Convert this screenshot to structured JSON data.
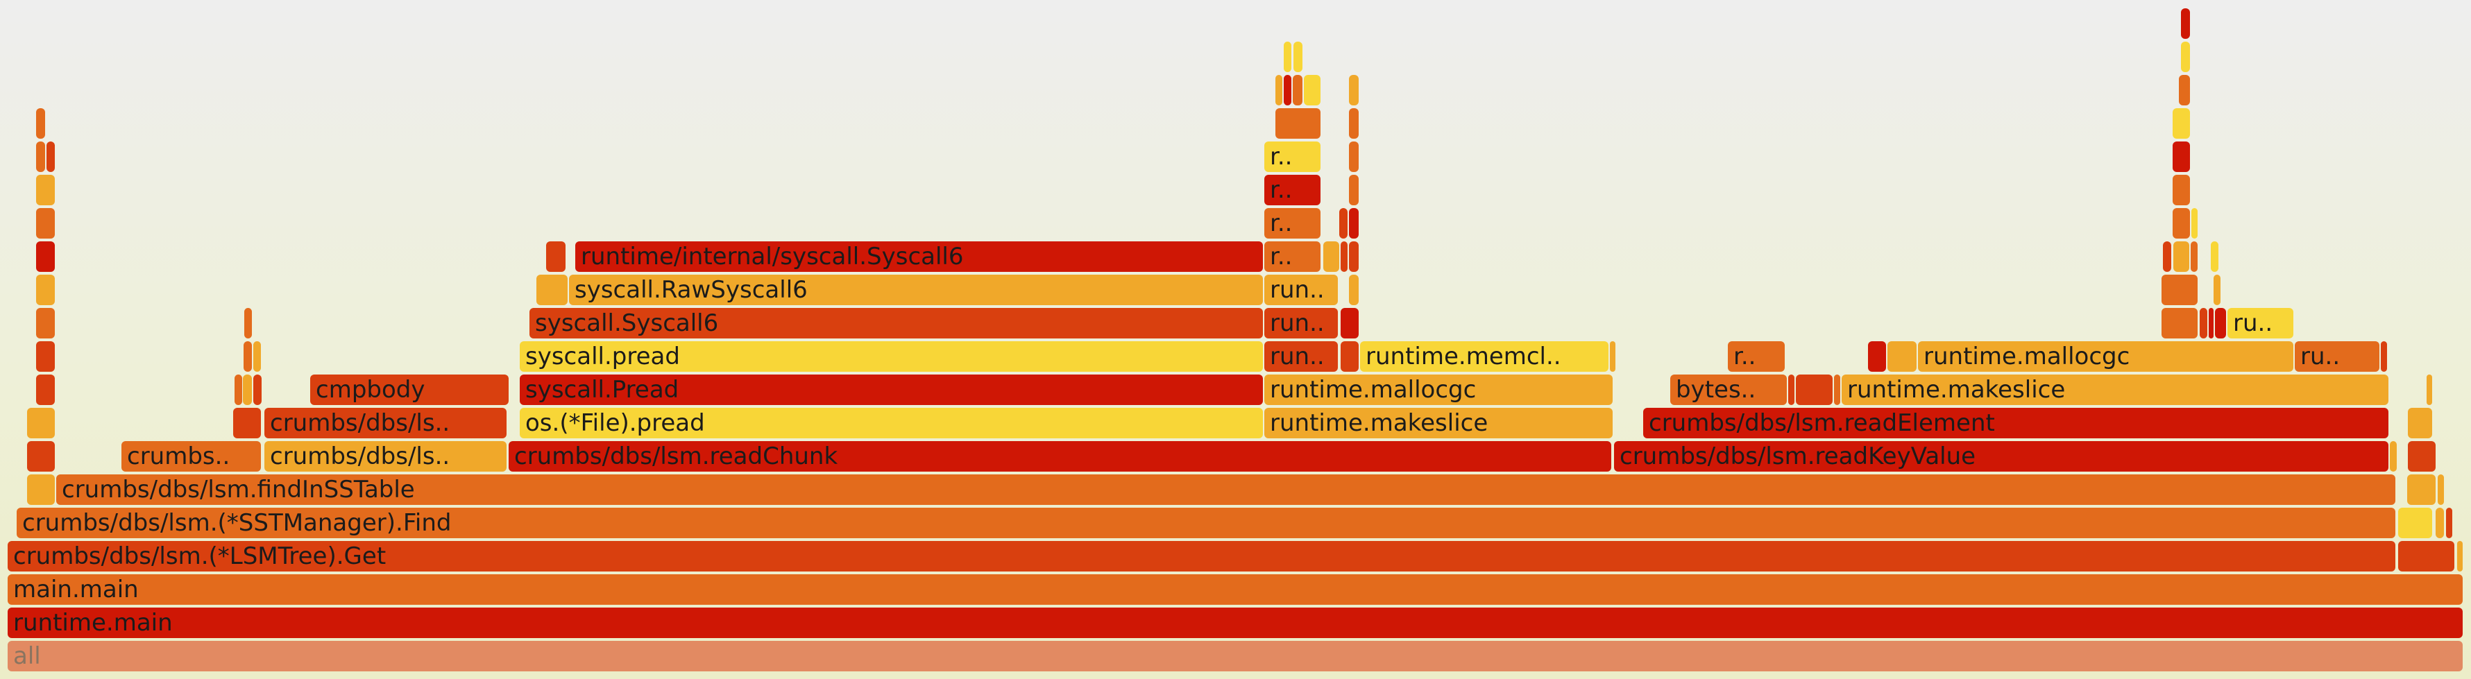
{
  "colors": {
    "red": "#cf1705",
    "orange_red": "#d9400f",
    "orange": "#e36b1c",
    "amber": "#f0a82a",
    "yellow": "#f8d637",
    "root": "#e28a62"
  },
  "frames": [
    {
      "d": 0,
      "s": 11,
      "e": 3549,
      "c": "root",
      "t": "all"
    },
    {
      "d": 1,
      "s": 11,
      "e": 3549,
      "c": "red",
      "t": "runtime.main"
    },
    {
      "d": 2,
      "s": 11,
      "e": 3549,
      "c": "orange",
      "t": "main.main"
    },
    {
      "d": 3,
      "s": 11,
      "e": 3452,
      "c": "orange_red",
      "t": "crumbs/dbs/lsm.(*LSMTree).Get"
    },
    {
      "d": 3,
      "s": 3456,
      "e": 3537,
      "c": "orange_red",
      "t": ""
    },
    {
      "d": 3,
      "s": 3541,
      "e": 3549,
      "c": "amber",
      "t": ""
    },
    {
      "d": 4,
      "s": 24,
      "e": 3452,
      "c": "orange",
      "t": "crumbs/dbs/lsm.(*SSTManager).Find"
    },
    {
      "d": 4,
      "s": 3456,
      "e": 3505,
      "c": "yellow",
      "t": ""
    },
    {
      "d": 4,
      "s": 3510,
      "e": 3522,
      "c": "amber",
      "t": ""
    },
    {
      "d": 4,
      "s": 3525,
      "e": 3534,
      "c": "orange_red",
      "t": ""
    },
    {
      "d": 5,
      "s": 39,
      "e": 79,
      "c": "amber",
      "t": ""
    },
    {
      "d": 5,
      "s": 81,
      "e": 3452,
      "c": "orange",
      "t": "crumbs/dbs/lsm.findInSSTable"
    },
    {
      "d": 5,
      "s": 3469,
      "e": 3510,
      "c": "amber",
      "t": ""
    },
    {
      "d": 5,
      "s": 3513,
      "e": 3522,
      "c": "amber",
      "t": ""
    },
    {
      "d": 6,
      "s": 39,
      "e": 79,
      "c": "orange_red",
      "t": ""
    },
    {
      "d": 6,
      "s": 175,
      "e": 376,
      "c": "orange",
      "t": "crumbs.."
    },
    {
      "d": 6,
      "s": 381,
      "e": 730,
      "c": "amber",
      "t": "crumbs/dbs/ls.."
    },
    {
      "d": 6,
      "s": 733,
      "e": 2322,
      "c": "red",
      "t": "crumbs/dbs/lsm.readChunk"
    },
    {
      "d": 6,
      "s": 2326,
      "e": 3442,
      "c": "red",
      "t": "crumbs/dbs/lsm.readKeyValue"
    },
    {
      "d": 6,
      "s": 3444,
      "e": 3454,
      "c": "amber",
      "t": ""
    },
    {
      "d": 6,
      "s": 3470,
      "e": 3510,
      "c": "orange_red",
      "t": ""
    },
    {
      "d": 7,
      "s": 39,
      "e": 79,
      "c": "amber",
      "t": ""
    },
    {
      "d": 7,
      "s": 336,
      "e": 376,
      "c": "orange_red",
      "t": ""
    },
    {
      "d": 7,
      "s": 381,
      "e": 730,
      "c": "orange_red",
      "t": "crumbs/dbs/ls.."
    },
    {
      "d": 7,
      "s": 749,
      "e": 1820,
      "c": "yellow",
      "t": "os.(*File).pread"
    },
    {
      "d": 7,
      "s": 1822,
      "e": 2324,
      "c": "amber",
      "t": "runtime.makeslice"
    },
    {
      "d": 7,
      "s": 2368,
      "e": 3442,
      "c": "red",
      "t": "crumbs/dbs/lsm.readElement"
    },
    {
      "d": 7,
      "s": 3470,
      "e": 3505,
      "c": "amber",
      "t": ""
    },
    {
      "d": 8,
      "s": 52,
      "e": 79,
      "c": "orange_red",
      "t": ""
    },
    {
      "d": 8,
      "s": 338,
      "e": 349,
      "c": "orange",
      "t": ""
    },
    {
      "d": 8,
      "s": 350,
      "e": 363,
      "c": "amber",
      "t": ""
    },
    {
      "d": 8,
      "s": 365,
      "e": 377,
      "c": "orange_red",
      "t": ""
    },
    {
      "d": 8,
      "s": 447,
      "e": 733,
      "c": "orange_red",
      "t": "cmpbody"
    },
    {
      "d": 8,
      "s": 749,
      "e": 1820,
      "c": "red",
      "t": "syscall.Pread"
    },
    {
      "d": 8,
      "s": 1822,
      "e": 2324,
      "c": "amber",
      "t": "runtime.mallocgc"
    },
    {
      "d": 8,
      "s": 2407,
      "e": 2575,
      "c": "orange",
      "t": "bytes.."
    },
    {
      "d": 8,
      "s": 2577,
      "e": 2586,
      "c": "orange_red",
      "t": ""
    },
    {
      "d": 8,
      "s": 2588,
      "e": 2641,
      "c": "orange_red",
      "t": ""
    },
    {
      "d": 8,
      "s": 2643,
      "e": 2652,
      "c": "orange",
      "t": ""
    },
    {
      "d": 8,
      "s": 2654,
      "e": 3442,
      "c": "amber",
      "t": "runtime.makeslice"
    },
    {
      "d": 8,
      "s": 3497,
      "e": 3505,
      "c": "amber",
      "t": ""
    },
    {
      "d": 9,
      "s": 52,
      "e": 79,
      "c": "orange_red",
      "t": ""
    },
    {
      "d": 9,
      "s": 351,
      "e": 363,
      "c": "orange",
      "t": ""
    },
    {
      "d": 9,
      "s": 365,
      "e": 376,
      "c": "amber",
      "t": ""
    },
    {
      "d": 9,
      "s": 749,
      "e": 1820,
      "c": "yellow",
      "t": "syscall.pread"
    },
    {
      "d": 9,
      "s": 1822,
      "e": 1928,
      "c": "orange_red",
      "t": "run.."
    },
    {
      "d": 9,
      "s": 1932,
      "e": 1958,
      "c": "orange_red",
      "t": ""
    },
    {
      "d": 9,
      "s": 1960,
      "e": 2318,
      "c": "yellow",
      "t": "runtime.memcl.."
    },
    {
      "d": 9,
      "s": 2320,
      "e": 2328,
      "c": "amber",
      "t": ""
    },
    {
      "d": 9,
      "s": 2490,
      "e": 2572,
      "c": "orange",
      "t": "r.."
    },
    {
      "d": 9,
      "s": 2692,
      "e": 2718,
      "c": "red",
      "t": ""
    },
    {
      "d": 9,
      "s": 2720,
      "e": 2762,
      "c": "amber",
      "t": ""
    },
    {
      "d": 9,
      "s": 2764,
      "e": 3305,
      "c": "amber",
      "t": "runtime.mallocgc"
    },
    {
      "d": 9,
      "s": 3307,
      "e": 3429,
      "c": "orange",
      "t": "ru.."
    },
    {
      "d": 9,
      "s": 3431,
      "e": 3440,
      "c": "orange_red",
      "t": ""
    },
    {
      "d": 10,
      "s": 52,
      "e": 79,
      "c": "orange",
      "t": ""
    },
    {
      "d": 10,
      "s": 352,
      "e": 363,
      "c": "orange",
      "t": ""
    },
    {
      "d": 10,
      "s": 763,
      "e": 1820,
      "c": "orange_red",
      "t": "syscall.Syscall6"
    },
    {
      "d": 10,
      "s": 1822,
      "e": 1928,
      "c": "orange_red",
      "t": "run.."
    },
    {
      "d": 10,
      "s": 1932,
      "e": 1958,
      "c": "red",
      "t": ""
    },
    {
      "d": 10,
      "s": 3115,
      "e": 3167,
      "c": "orange",
      "t": ""
    },
    {
      "d": 10,
      "s": 3170,
      "e": 3181,
      "c": "orange_red",
      "t": ""
    },
    {
      "d": 10,
      "s": 3183,
      "e": 3190,
      "c": "red",
      "t": ""
    },
    {
      "d": 10,
      "s": 3192,
      "e": 3208,
      "c": "red",
      "t": ""
    },
    {
      "d": 10,
      "s": 3210,
      "e": 3305,
      "c": "yellow",
      "t": "ru.."
    },
    {
      "d": 11,
      "s": 52,
      "e": 79,
      "c": "amber",
      "t": ""
    },
    {
      "d": 11,
      "s": 773,
      "e": 818,
      "c": "amber",
      "t": ""
    },
    {
      "d": 11,
      "s": 820,
      "e": 1820,
      "c": "amber",
      "t": "syscall.RawSyscall6"
    },
    {
      "d": 11,
      "s": 1822,
      "e": 1928,
      "c": "amber",
      "t": "run.."
    },
    {
      "d": 11,
      "s": 1944,
      "e": 1958,
      "c": "amber",
      "t": ""
    },
    {
      "d": 11,
      "s": 3115,
      "e": 3167,
      "c": "orange",
      "t": ""
    },
    {
      "d": 11,
      "s": 3190,
      "e": 3200,
      "c": "amber",
      "t": ""
    },
    {
      "d": 12,
      "s": 52,
      "e": 79,
      "c": "red",
      "t": ""
    },
    {
      "d": 12,
      "s": 787,
      "e": 815,
      "c": "orange_red",
      "t": ""
    },
    {
      "d": 12,
      "s": 829,
      "e": 1820,
      "c": "red",
      "t": "runtime/internal/syscall.Syscall6"
    },
    {
      "d": 12,
      "s": 1822,
      "e": 1903,
      "c": "orange",
      "t": "r.."
    },
    {
      "d": 12,
      "s": 1907,
      "e": 1930,
      "c": "amber",
      "t": ""
    },
    {
      "d": 12,
      "s": 1932,
      "e": 1942,
      "c": "orange_red",
      "t": ""
    },
    {
      "d": 12,
      "s": 1944,
      "e": 1958,
      "c": "orange_red",
      "t": ""
    },
    {
      "d": 12,
      "s": 3117,
      "e": 3129,
      "c": "orange_red",
      "t": ""
    },
    {
      "d": 12,
      "s": 3132,
      "e": 3155,
      "c": "amber",
      "t": ""
    },
    {
      "d": 12,
      "s": 3157,
      "e": 3167,
      "c": "orange",
      "t": ""
    },
    {
      "d": 12,
      "s": 3186,
      "e": 3197,
      "c": "yellow",
      "t": ""
    },
    {
      "d": 13,
      "s": 52,
      "e": 79,
      "c": "orange",
      "t": ""
    },
    {
      "d": 13,
      "s": 1822,
      "e": 1903,
      "c": "orange",
      "t": "r.."
    },
    {
      "d": 13,
      "s": 1930,
      "e": 1942,
      "c": "orange_red",
      "t": ""
    },
    {
      "d": 13,
      "s": 1944,
      "e": 1958,
      "c": "red",
      "t": ""
    },
    {
      "d": 13,
      "s": 3131,
      "e": 3156,
      "c": "orange",
      "t": ""
    },
    {
      "d": 13,
      "s": 3158,
      "e": 3167,
      "c": "yellow",
      "t": ""
    },
    {
      "d": 14,
      "s": 52,
      "e": 79,
      "c": "amber",
      "t": ""
    },
    {
      "d": 14,
      "s": 1822,
      "e": 1903,
      "c": "red",
      "t": "r.."
    },
    {
      "d": 14,
      "s": 1944,
      "e": 1958,
      "c": "orange",
      "t": ""
    },
    {
      "d": 14,
      "s": 3131,
      "e": 3156,
      "c": "orange",
      "t": ""
    },
    {
      "d": 15,
      "s": 52,
      "e": 65,
      "c": "orange",
      "t": ""
    },
    {
      "d": 15,
      "s": 67,
      "e": 79,
      "c": "orange_red",
      "t": ""
    },
    {
      "d": 15,
      "s": 1822,
      "e": 1903,
      "c": "yellow",
      "t": "r.."
    },
    {
      "d": 15,
      "s": 1944,
      "e": 1958,
      "c": "orange",
      "t": ""
    },
    {
      "d": 15,
      "s": 3131,
      "e": 3156,
      "c": "red",
      "t": ""
    },
    {
      "d": 16,
      "s": 52,
      "e": 65,
      "c": "orange",
      "t": ""
    },
    {
      "d": 16,
      "s": 1838,
      "e": 1903,
      "c": "orange",
      "t": ""
    },
    {
      "d": 16,
      "s": 1944,
      "e": 1958,
      "c": "orange",
      "t": ""
    },
    {
      "d": 16,
      "s": 3131,
      "e": 3156,
      "c": "yellow",
      "t": ""
    },
    {
      "d": 17,
      "s": 1838,
      "e": 1848,
      "c": "amber",
      "t": ""
    },
    {
      "d": 17,
      "s": 1850,
      "e": 1861,
      "c": "red",
      "t": ""
    },
    {
      "d": 17,
      "s": 1863,
      "e": 1877,
      "c": "orange",
      "t": ""
    },
    {
      "d": 17,
      "s": 1879,
      "e": 1903,
      "c": "yellow",
      "t": ""
    },
    {
      "d": 17,
      "s": 1944,
      "e": 1958,
      "c": "amber",
      "t": ""
    },
    {
      "d": 17,
      "s": 3140,
      "e": 3156,
      "c": "orange",
      "t": ""
    },
    {
      "d": 18,
      "s": 1850,
      "e": 1861,
      "c": "yellow",
      "t": ""
    },
    {
      "d": 18,
      "s": 1864,
      "e": 1877,
      "c": "yellow",
      "t": ""
    },
    {
      "d": 18,
      "s": 3143,
      "e": 3156,
      "c": "yellow",
      "t": ""
    },
    {
      "d": 19,
      "s": 3143,
      "e": 3156,
      "c": "red",
      "t": ""
    }
  ]
}
